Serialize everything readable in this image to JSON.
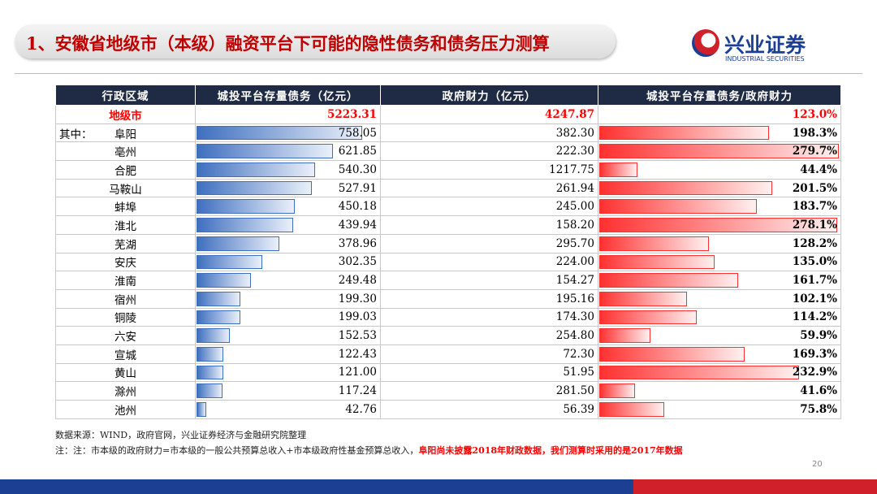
{
  "header": {
    "title": "1、安徽省地级市（本级）融资平台下可能的隐性债务和债务压力测算",
    "brand": "兴业证券",
    "brand_en": "INDUSTRIAL SECURITIES"
  },
  "table": {
    "columns": [
      "行政区域",
      "城投平台存量债务（亿元）",
      "政府财力（亿元）",
      "城投平台存量债务/政府财力"
    ],
    "group_label": "其中：",
    "rows": [
      [
        "地级市",
        "5223.31",
        "4247.87",
        "123.0%"
      ],
      [
        "阜阳",
        "758.05",
        "382.30",
        "198.3%"
      ],
      [
        "亳州",
        "621.85",
        "222.30",
        "279.7%"
      ],
      [
        "合肥",
        "540.30",
        "1217.75",
        "44.4%"
      ],
      [
        "马鞍山",
        "527.91",
        "261.94",
        "201.5%"
      ],
      [
        "蚌埠",
        "450.18",
        "245.00",
        "183.7%"
      ],
      [
        "淮北",
        "439.94",
        "158.20",
        "278.1%"
      ],
      [
        "芜湖",
        "378.96",
        "295.70",
        "128.2%"
      ],
      [
        "安庆",
        "302.35",
        "224.00",
        "135.0%"
      ],
      [
        "淮南",
        "249.48",
        "154.27",
        "161.7%"
      ],
      [
        "宿州",
        "199.30",
        "195.16",
        "102.1%"
      ],
      [
        "铜陵",
        "199.03",
        "174.30",
        "114.2%"
      ],
      [
        "六安",
        "152.53",
        "254.80",
        "59.9%"
      ],
      [
        "宣城",
        "122.43",
        "72.30",
        "169.3%"
      ],
      [
        "黄山",
        "121.00",
        "51.95",
        "232.9%"
      ],
      [
        "滁州",
        "117.24",
        "281.50",
        "41.6%"
      ],
      [
        "池州",
        "42.76",
        "56.39",
        "75.8%"
      ]
    ]
  },
  "notes": {
    "source": "数据来源：WIND，政府官网，兴业证券经济与金融研究院整理",
    "note": "注：注：市本级的政府财力=市本级的一般公共预算总收入+市本级政府性基金预算总收入，",
    "note_highlight": "阜阳尚未披露2018年财政数据，我们测算时采用的是2017年数据"
  },
  "page_number": "20"
}
